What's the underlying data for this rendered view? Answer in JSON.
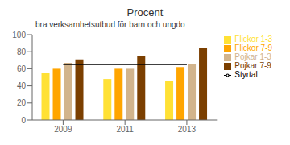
{
  "chart_data": {
    "type": "bar",
    "title": "Procent",
    "subtitle": "bra verksamhetsutbud för barn och ungdo",
    "categories": [
      "2009",
      "2011",
      "2013"
    ],
    "series": [
      {
        "name": "Flickor 1-3",
        "color": "#FFE135",
        "values": [
          55,
          48,
          46
        ]
      },
      {
        "name": "Flickor 7-9",
        "color": "#FFA500",
        "values": [
          60,
          60,
          62
        ]
      },
      {
        "name": "Pojkar 1-3",
        "color": "#D2B48C",
        "values": [
          67,
          60,
          66
        ]
      },
      {
        "name": "Pojkar 7-9",
        "color": "#7B3F00",
        "values": [
          71,
          75,
          85
        ]
      },
      {
        "name": "Styrtal",
        "type": "line",
        "color": "#000000",
        "values": [
          65,
          65,
          65
        ]
      }
    ],
    "ylim": [
      0,
      100
    ],
    "yticks": [
      0,
      20,
      40,
      60,
      80,
      100
    ],
    "grid": false,
    "legend": "right"
  }
}
